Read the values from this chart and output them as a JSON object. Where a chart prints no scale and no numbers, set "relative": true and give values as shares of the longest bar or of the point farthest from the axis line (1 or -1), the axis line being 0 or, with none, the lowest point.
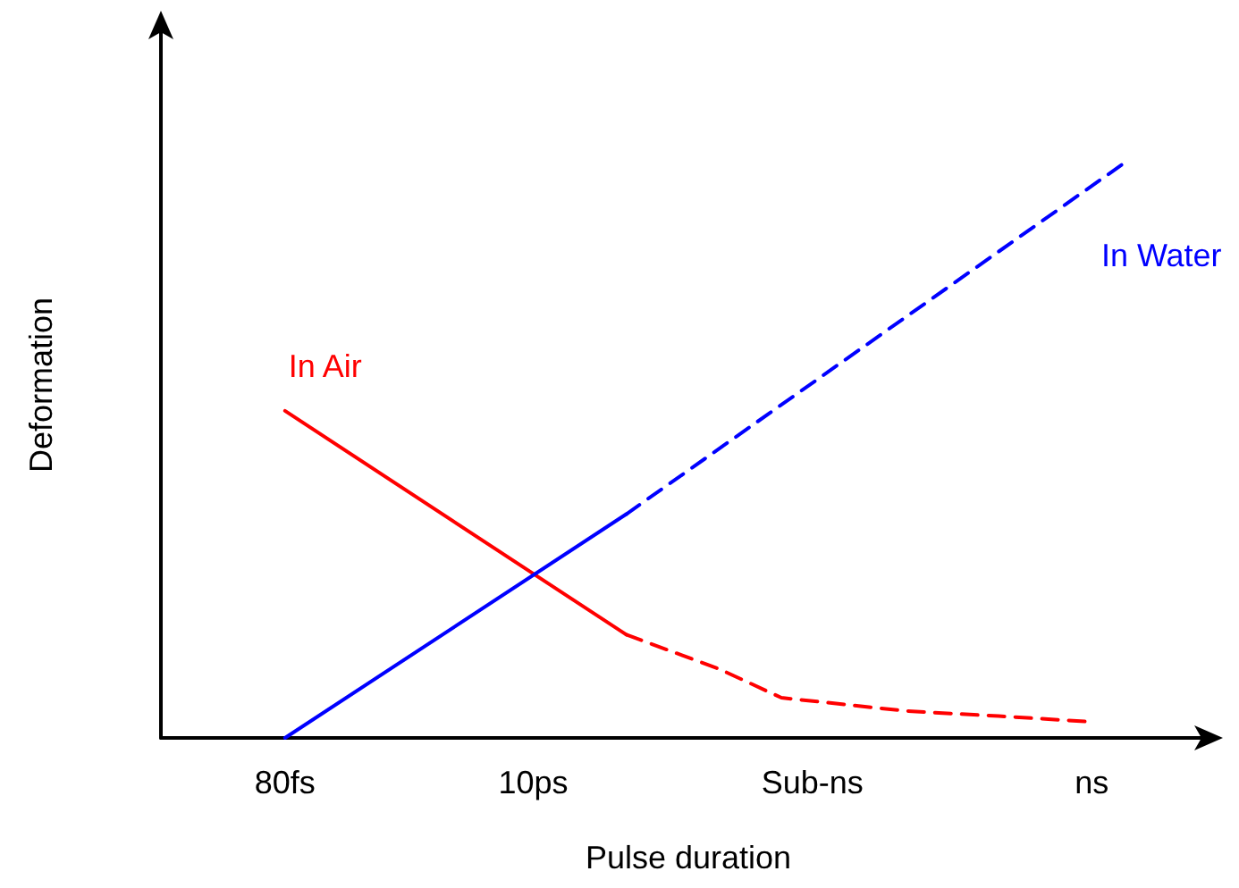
{
  "chart_data": {
    "type": "line",
    "xlabel": "Pulse duration",
    "ylabel": "Deformation",
    "relative": true,
    "tick_labels": "x",
    "grid": false,
    "legend": false,
    "marker": "none",
    "categories": [
      null,
      null,
      null,
      null,
      "80fs",
      null,
      null,
      null,
      null,
      null,
      null,
      null,
      "10ps",
      null,
      null,
      null,
      null,
      null,
      null,
      null,
      null,
      "Sub-ns",
      null,
      null,
      null,
      null,
      null,
      null,
      null,
      null,
      "ns",
      null,
      null,
      null,
      null
    ],
    "series": [
      {
        "name": "In Air",
        "color": "#ff0000",
        "line_style": "solid",
        "values": [
          null,
          null,
          null,
          null,
          0.57,
          null,
          null,
          null,
          null,
          null,
          null,
          null,
          null,
          null,
          null,
          0.18,
          null,
          null,
          null,
          null,
          null,
          null,
          null,
          null,
          null,
          null,
          null,
          null,
          null,
          null,
          null,
          null,
          null,
          null,
          null
        ]
      },
      {
        "color": "#ff0000",
        "line_style": "dashed",
        "values": [
          null,
          null,
          null,
          null,
          null,
          null,
          null,
          null,
          null,
          null,
          null,
          null,
          null,
          null,
          null,
          0.18,
          null,
          null,
          0.12,
          null,
          0.07,
          null,
          null,
          null,
          0.047,
          null,
          null,
          0.038,
          null,
          null,
          0.028,
          null,
          null,
          null,
          null
        ]
      },
      {
        "color": "#0000ff",
        "line_style": "solid",
        "values": [
          null,
          null,
          null,
          null,
          0,
          null,
          null,
          null,
          null,
          null,
          null,
          null,
          null,
          null,
          null,
          0.39,
          null,
          null,
          null,
          null,
          null,
          null,
          null,
          null,
          null,
          null,
          null,
          null,
          null,
          null,
          null,
          null,
          null,
          null,
          null
        ]
      },
      {
        "name": "In Water",
        "color": "#0000ff",
        "line_style": "dashed",
        "values": [
          null,
          null,
          null,
          null,
          null,
          null,
          null,
          null,
          null,
          null,
          null,
          null,
          null,
          null,
          null,
          0.39,
          null,
          null,
          null,
          null,
          null,
          null,
          null,
          null,
          null,
          null,
          null,
          null,
          null,
          null,
          null,
          1,
          null,
          null,
          null
        ]
      }
    ]
  }
}
